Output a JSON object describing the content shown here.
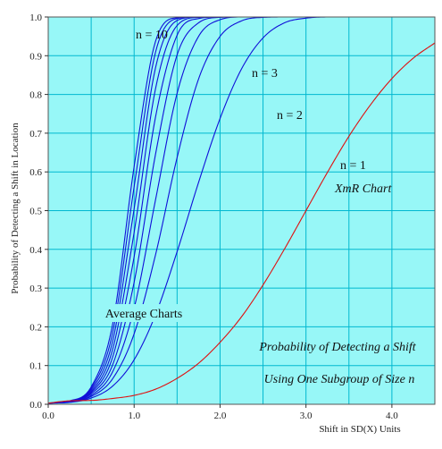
{
  "colors": {
    "plot_background": "#97F7F7",
    "grid": "#00B8D0",
    "average_curves": "#1010D8",
    "xmr_curve": "#E01010",
    "label_box": "#97F7F7"
  },
  "chart_data": {
    "type": "line",
    "title": "",
    "xlabel": "Shift in SD(X) Units",
    "ylabel": "Probability of Detecting a Shift in Location",
    "xlim": [
      0,
      4.5
    ],
    "ylim": [
      0,
      1
    ],
    "x_ticks": [
      "0.0",
      "1.0",
      "2.0",
      "3.0",
      "4.0"
    ],
    "y_ticks": [
      "0.0",
      "0.1",
      "0.2",
      "0.3",
      "0.4",
      "0.5",
      "0.6",
      "0.7",
      "0.8",
      "0.9",
      "1.0"
    ],
    "grid": true,
    "x": [
      0.0,
      0.25,
      0.5,
      0.75,
      1.0,
      1.25,
      1.5,
      1.75,
      2.0,
      2.25,
      2.5,
      2.75,
      3.0,
      3.25,
      3.5,
      3.75,
      4.0,
      4.25,
      4.5
    ],
    "series": [
      {
        "values": [
          0.003,
          0.005,
          0.016,
          0.047,
          0.115,
          0.232,
          0.394,
          0.573,
          0.738,
          0.866,
          0.946,
          0.985,
          0.997,
          1.0,
          1.0,
          1.0,
          1.0,
          1.0,
          1.0
        ]
      },
      {
        "values": [
          0.003,
          0.006,
          0.02,
          0.066,
          0.182,
          0.387,
          0.637,
          0.84,
          0.95,
          0.99,
          0.999,
          1.0,
          1.0,
          1.0,
          1.0,
          1.0,
          1.0,
          1.0,
          1.0
        ]
      },
      {
        "values": [
          0.003,
          0.006,
          0.023,
          0.084,
          0.248,
          0.529,
          0.803,
          0.95,
          0.993,
          1.0,
          1.0,
          1.0,
          1.0,
          1.0,
          1.0,
          1.0,
          1.0,
          1.0,
          1.0
        ]
      },
      {
        "values": [
          0.003,
          0.007,
          0.027,
          0.102,
          0.315,
          0.647,
          0.902,
          0.985,
          0.999,
          1.0,
          1.0,
          1.0,
          1.0,
          1.0,
          1.0,
          1.0,
          1.0,
          1.0,
          1.0
        ]
      },
      {
        "values": [
          0.003,
          0.007,
          0.03,
          0.122,
          0.381,
          0.743,
          0.953,
          0.996,
          1.0,
          1.0,
          1.0,
          1.0,
          1.0,
          1.0,
          1.0,
          1.0,
          1.0,
          1.0,
          1.0
        ]
      },
      {
        "values": [
          0.003,
          0.007,
          0.033,
          0.142,
          0.444,
          0.816,
          0.978,
          0.999,
          1.0,
          1.0,
          1.0,
          1.0,
          1.0,
          1.0,
          1.0,
          1.0,
          1.0,
          1.0,
          1.0
        ]
      },
      {
        "values": [
          0.003,
          0.008,
          0.037,
          0.163,
          0.505,
          0.87,
          0.991,
          1.0,
          1.0,
          1.0,
          1.0,
          1.0,
          1.0,
          1.0,
          1.0,
          1.0,
          1.0,
          1.0,
          1.0
        ]
      },
      {
        "values": [
          0.003,
          0.008,
          0.041,
          0.185,
          0.562,
          0.91,
          0.996,
          1.0,
          1.0,
          1.0,
          1.0,
          1.0,
          1.0,
          1.0,
          1.0,
          1.0,
          1.0,
          1.0,
          1.0
        ]
      },
      {
        "values": [
          0.003,
          0.009,
          0.045,
          0.207,
          0.614,
          0.938,
          0.998,
          1.0,
          1.0,
          1.0,
          1.0,
          1.0,
          1.0,
          1.0,
          1.0,
          1.0,
          1.0,
          1.0,
          1.0
        ]
      },
      {
        "values": [
          0.003,
          0.009,
          0.01,
          0.015,
          0.023,
          0.039,
          0.067,
          0.106,
          0.16,
          0.226,
          0.308,
          0.401,
          0.5,
          0.599,
          0.692,
          0.773,
          0.841,
          0.894,
          0.933
        ]
      }
    ],
    "annotations": {
      "n10": "n = 10",
      "n3": "n = 3",
      "n2": "n = 2",
      "n1": "n = 1",
      "xmr": "XmR Chart",
      "average": "Average Charts",
      "prob_line1": "Probability of Detecting a Shift",
      "prob_line2": "Using One Subgroup of Size n"
    }
  }
}
